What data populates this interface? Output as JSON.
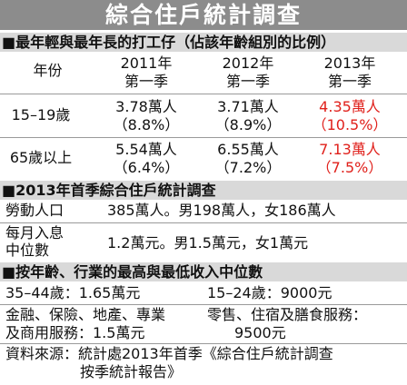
{
  "header": {
    "title": "綜合住戶統計調查"
  },
  "section1": {
    "heading": "■最年輕與最年長的打工仔（佔該年齡組別的比例）",
    "table": {
      "columns": [
        "年份",
        {
          "year": "2011年",
          "quarter": "第一季"
        },
        {
          "year": "2012年",
          "quarter": "第一季"
        },
        {
          "year": "2013年",
          "quarter": "第一季"
        }
      ],
      "rows": [
        {
          "label": "15–19歲",
          "cells": [
            {
              "count": "3.78萬人",
              "share": "（8.8%）"
            },
            {
              "count": "3.71萬人",
              "share": "（8.9%）"
            },
            {
              "count": "4.35萬人",
              "share": "（10.5%）"
            }
          ]
        },
        {
          "label": "65歲以上",
          "cells": [
            {
              "count": "5.54萬人",
              "share": "（6.4%）"
            },
            {
              "count": "6.55萬人",
              "share": "（7.2%）"
            },
            {
              "count": "7.13萬人",
              "share": "（7.5%）"
            }
          ]
        }
      ]
    }
  },
  "section2": {
    "heading": "■2013年首季綜合住戶統計調查",
    "rows": [
      {
        "label": [
          "勞動人口"
        ],
        "text": "385萬人。男198萬人，女186萬人"
      },
      {
        "label": [
          "每月入息",
          "中位數"
        ],
        "text": "1.2萬元。男1.5萬元，女1萬元"
      }
    ]
  },
  "section3": {
    "heading": "■按年齡、行業的最高與最低收入中位數",
    "items": [
      {
        "lines": [
          "35–44歲：1.65萬元"
        ]
      },
      {
        "lines": [
          "15–24歲：9000元"
        ]
      },
      {
        "lines": [
          "金融、保險、地產、專業",
          "及商用服務：1.5萬元"
        ]
      },
      {
        "lines": [
          "零售、住宿及膳食服務：",
          "9500元"
        ]
      }
    ]
  },
  "source": {
    "lines": [
      "資料來源：統計處2013年首季《綜合住戶統計調查",
      "按季統計報告》"
    ]
  }
}
